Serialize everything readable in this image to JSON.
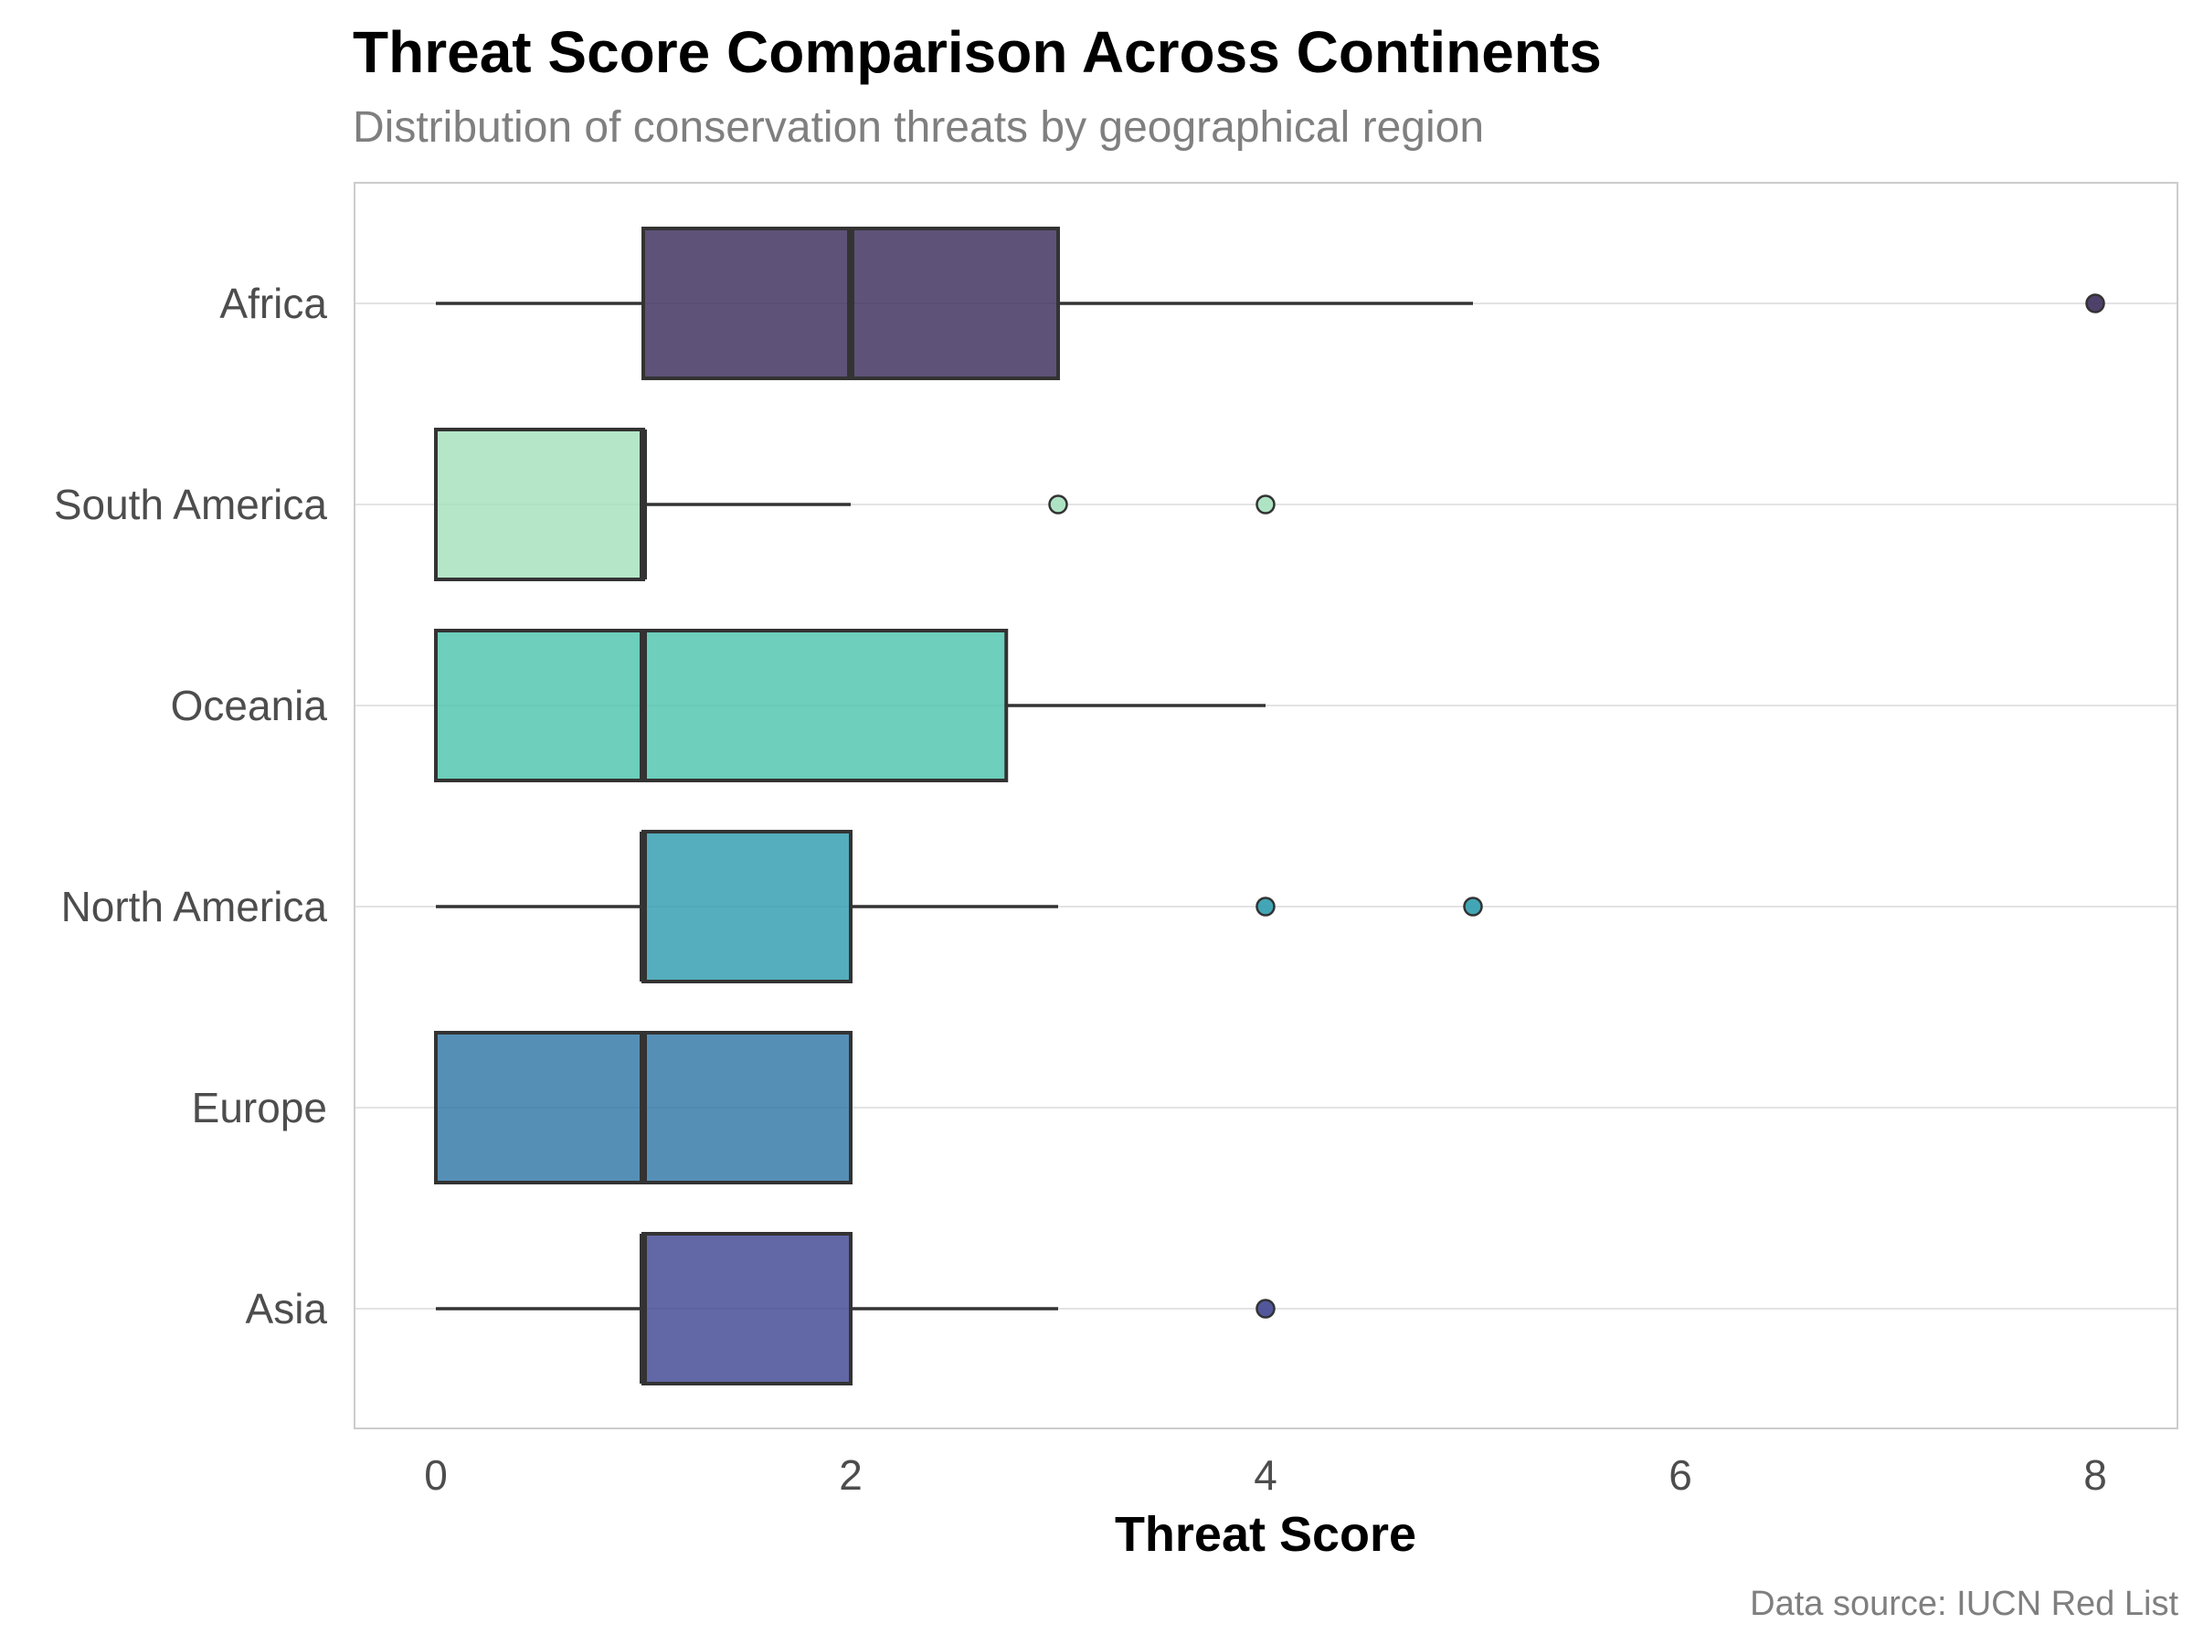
{
  "chart_data": {
    "type": "boxplot",
    "orientation": "horizontal",
    "title": "Threat Score Comparison Across Continents",
    "subtitle": "Distribution of conservation threats by geographical region",
    "caption": "Data source: IUCN Red List",
    "xlabel": "Threat Score",
    "ylabel": "",
    "xlim": [
      -0.4,
      8.4
    ],
    "xticks": [
      0,
      2,
      4,
      6,
      8
    ],
    "grid": "horizontal",
    "legend": "none",
    "categories": [
      "Africa",
      "South America",
      "Oceania",
      "North America",
      "Europe",
      "Asia"
    ],
    "series": [
      {
        "category": "Africa",
        "color": "#3b2c5a",
        "whisker_low": 0,
        "q1": 1,
        "median": 2,
        "q3": 3,
        "whisker_high": 5,
        "outliers": [
          8
        ]
      },
      {
        "category": "South America",
        "color": "#a5e0bc",
        "whisker_low": 0,
        "q1": 0,
        "median": 1,
        "q3": 1,
        "whisker_high": 2,
        "outliers": [
          3,
          4
        ]
      },
      {
        "category": "Oceania",
        "color": "#4dc5ad",
        "whisker_low": 0,
        "q1": 0,
        "median": 1,
        "q3": 2.75,
        "whisker_high": 4,
        "outliers": []
      },
      {
        "category": "North America",
        "color": "#2e9cae",
        "whisker_low": 0,
        "q1": 1,
        "median": 1,
        "q3": 2,
        "whisker_high": 3,
        "outliers": [
          4,
          5
        ]
      },
      {
        "category": "Europe",
        "color": "#3176a6",
        "whisker_low": 0,
        "q1": 0,
        "median": 1,
        "q3": 2,
        "whisker_high": 2,
        "outliers": []
      },
      {
        "category": "Asia",
        "color": "#3f4591",
        "whisker_low": 0,
        "q1": 1,
        "median": 1,
        "q3": 2,
        "whisker_high": 3,
        "outliers": [
          4
        ]
      }
    ]
  }
}
